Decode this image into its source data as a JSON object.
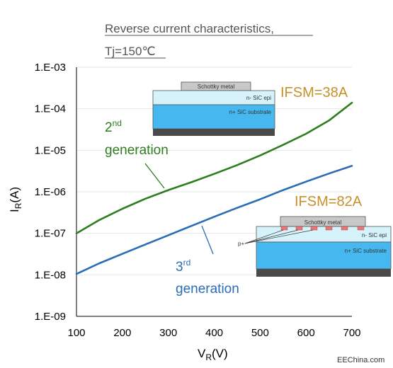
{
  "chart_data": {
    "type": "line",
    "title_line1": "Reverse current characteristics,",
    "title_line2": "Tj=150℃",
    "xlabel_main": "V",
    "xlabel_sub": "R",
    "xlabel_unit": "(V)",
    "ylabel_main": "I",
    "ylabel_sub": "R",
    "ylabel_unit": "(A)",
    "x_ticks": [
      "100",
      "200",
      "300",
      "400",
      "500",
      "600",
      "700"
    ],
    "y_ticks": [
      "1.E-03",
      "1.E-04",
      "1.E-05",
      "1.E-06",
      "1.E-07",
      "1.E-08",
      "1.E-09"
    ],
    "xlim": [
      100,
      700
    ],
    "ylim": [
      1e-09,
      0.001
    ],
    "yscale": "log",
    "series": [
      {
        "color": "#2e7d1f",
        "x": [
          100,
          150,
          200,
          250,
          300,
          350,
          400,
          450,
          500,
          550,
          600,
          650,
          700
        ],
        "y": [
          1e-07,
          2.1e-07,
          3.9e-07,
          6.8e-07,
          1.1e-06,
          1.7e-06,
          2.7e-06,
          4.4e-06,
          7.5e-06,
          1.35e-05,
          2.5e-05,
          5.2e-05,
          0.00014
        ]
      },
      {
        "color": "#2a6db5",
        "x": [
          100,
          150,
          200,
          250,
          300,
          350,
          400,
          450,
          500,
          550,
          600,
          650,
          700
        ],
        "y": [
          1.05e-08,
          1.9e-08,
          3.2e-08,
          5.4e-08,
          9e-08,
          1.5e-07,
          2.5e-07,
          4.1e-07,
          6.6e-07,
          1.1e-06,
          1.75e-06,
          2.75e-06,
          4.2e-06
        ]
      }
    ],
    "annotations": {
      "gen2_num": "2",
      "gen2_sup": "nd",
      "gen2_word": "generation",
      "gen3_num": "3",
      "gen3_sup": "rd",
      "gen3_word": "generation",
      "ifsm_gen2": "IFSM=38A",
      "ifsm_gen3": "IFSM=82A"
    },
    "diagram_gen2": {
      "metal": "Schottky metal",
      "epi": "n- SiC epi",
      "substrate": "n+ SiC substrate"
    },
    "diagram_gen3": {
      "metal": "Schottky metal",
      "epi": "n- SiC epi",
      "substrate": "n+ SiC substrate",
      "implant": "p+"
    },
    "colors": {
      "gen2": "#2e7d1f",
      "gen3": "#2a6db5",
      "ifsm": "#c8902a"
    }
  },
  "watermark": "EEChina.com"
}
